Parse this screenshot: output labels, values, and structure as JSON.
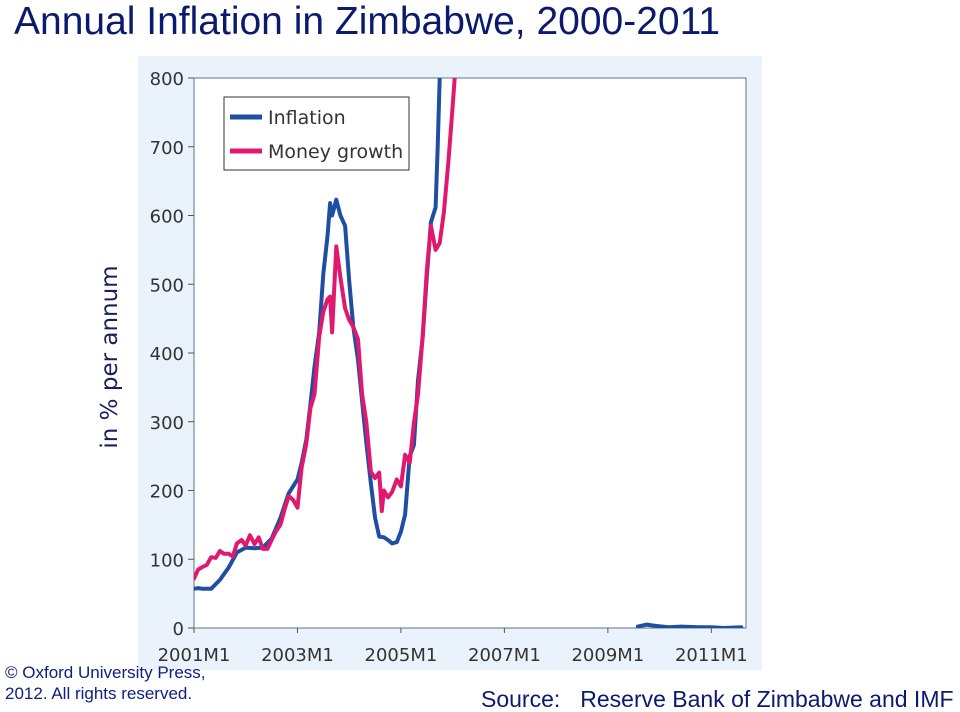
{
  "slide": {
    "title": "Annual Inflation in Zimbabwe, 2000-2011",
    "ylabel": "in % per annum",
    "copyright_line1": "© Oxford University Press,",
    "copyright_line2": "2012. All rights reserved.",
    "source_label": "Source:",
    "source_text": "Reserve Bank of Zimbabwe and IMF"
  },
  "colors": {
    "inflation": "#1f4fa0",
    "money_growth": "#e0196e",
    "panel": "#eaf3fb",
    "title": "#0b1a6e"
  },
  "chart_data": {
    "type": "line",
    "title": "",
    "xlabel": "",
    "ylabel": "",
    "ylim": [
      0,
      800
    ],
    "yticks": [
      0,
      100,
      200,
      300,
      400,
      500,
      600,
      700,
      800
    ],
    "xrange": [
      2001.0,
      2011.67
    ],
    "xticks": [
      {
        "label": "2001M1",
        "x": 2001.0
      },
      {
        "label": "2003M1",
        "x": 2003.0
      },
      {
        "label": "2005M1",
        "x": 2005.0
      },
      {
        "label": "2007M1",
        "x": 2007.0
      },
      {
        "label": "2009M1",
        "x": 2009.0
      },
      {
        "label": "2011M1",
        "x": 2011.0
      }
    ],
    "legend_position": "top-left",
    "grid": false,
    "series": [
      {
        "name": "Inflation",
        "color": "#1f4fa0",
        "segments": [
          [
            [
              2001.0,
              57
            ],
            [
              2001.08,
              58
            ],
            [
              2001.17,
              57
            ],
            [
              2001.33,
              57
            ],
            [
              2001.5,
              70
            ],
            [
              2001.67,
              88
            ],
            [
              2001.83,
              110
            ],
            [
              2002.0,
              117
            ],
            [
              2002.17,
              116
            ],
            [
              2002.33,
              117
            ],
            [
              2002.5,
              130
            ],
            [
              2002.67,
              160
            ],
            [
              2002.83,
              196
            ],
            [
              2003.0,
              216
            ],
            [
              2003.08,
              240
            ],
            [
              2003.17,
              274
            ],
            [
              2003.25,
              325
            ],
            [
              2003.33,
              380
            ],
            [
              2003.42,
              430
            ],
            [
              2003.5,
              515
            ],
            [
              2003.58,
              570
            ],
            [
              2003.63,
              618
            ],
            [
              2003.67,
              600
            ],
            [
              2003.75,
              623
            ],
            [
              2003.83,
              600
            ],
            [
              2003.92,
              585
            ],
            [
              2004.0,
              505
            ],
            [
              2004.08,
              438
            ],
            [
              2004.17,
              390
            ],
            [
              2004.25,
              330
            ],
            [
              2004.33,
              270
            ],
            [
              2004.42,
              210
            ],
            [
              2004.5,
              160
            ],
            [
              2004.58,
              133
            ],
            [
              2004.67,
              132
            ],
            [
              2004.75,
              128
            ],
            [
              2004.83,
              123
            ],
            [
              2004.92,
              125
            ],
            [
              2005.0,
              140
            ],
            [
              2005.08,
              165
            ],
            [
              2005.17,
              250
            ],
            [
              2005.25,
              266
            ],
            [
              2005.33,
              360
            ],
            [
              2005.42,
              423
            ],
            [
              2005.5,
              510
            ],
            [
              2005.58,
              590
            ],
            [
              2005.67,
              612
            ],
            [
              2005.71,
              700
            ],
            [
              2005.75,
              800
            ]
          ],
          [
            [
              2009.58,
              2
            ],
            [
              2009.75,
              5
            ],
            [
              2009.92,
              3
            ],
            [
              2010.17,
              1
            ],
            [
              2010.42,
              2
            ],
            [
              2010.75,
              1
            ],
            [
              2011.0,
              1
            ],
            [
              2011.25,
              0
            ],
            [
              2011.58,
              1
            ]
          ]
        ]
      },
      {
        "name": "Money growth",
        "color": "#e0196e",
        "segments": [
          [
            [
              2001.0,
              72
            ],
            [
              2001.08,
              85
            ],
            [
              2001.17,
              89
            ],
            [
              2001.25,
              92
            ],
            [
              2001.33,
              103
            ],
            [
              2001.42,
              102
            ],
            [
              2001.5,
              112
            ],
            [
              2001.58,
              108
            ],
            [
              2001.67,
              108
            ],
            [
              2001.75,
              104
            ],
            [
              2001.83,
              123
            ],
            [
              2001.92,
              128
            ],
            [
              2002.0,
              120
            ],
            [
              2002.08,
              135
            ],
            [
              2002.17,
              122
            ],
            [
              2002.25,
              132
            ],
            [
              2002.33,
              115
            ],
            [
              2002.42,
              115
            ],
            [
              2002.5,
              128
            ],
            [
              2002.58,
              140
            ],
            [
              2002.67,
              150
            ],
            [
              2002.75,
              172
            ],
            [
              2002.83,
              192
            ],
            [
              2002.92,
              186
            ],
            [
              2003.0,
              175
            ],
            [
              2003.08,
              233
            ],
            [
              2003.17,
              268
            ],
            [
              2003.25,
              320
            ],
            [
              2003.33,
              340
            ],
            [
              2003.42,
              424
            ],
            [
              2003.5,
              460
            ],
            [
              2003.58,
              478
            ],
            [
              2003.63,
              482
            ],
            [
              2003.67,
              430
            ],
            [
              2003.75,
              555
            ],
            [
              2003.83,
              510
            ],
            [
              2003.92,
              465
            ],
            [
              2004.0,
              448
            ],
            [
              2004.08,
              438
            ],
            [
              2004.17,
              420
            ],
            [
              2004.25,
              340
            ],
            [
              2004.33,
              300
            ],
            [
              2004.42,
              227
            ],
            [
              2004.5,
              218
            ],
            [
              2004.58,
              226
            ],
            [
              2004.63,
              170
            ],
            [
              2004.67,
              200
            ],
            [
              2004.75,
              190
            ],
            [
              2004.83,
              198
            ],
            [
              2004.92,
              216
            ],
            [
              2005.0,
              206
            ],
            [
              2005.08,
              252
            ],
            [
              2005.17,
              240
            ],
            [
              2005.25,
              298
            ],
            [
              2005.33,
              340
            ],
            [
              2005.42,
              425
            ],
            [
              2005.5,
              520
            ],
            [
              2005.58,
              585
            ],
            [
              2005.67,
              550
            ],
            [
              2005.75,
              560
            ],
            [
              2005.83,
              605
            ],
            [
              2005.92,
              680
            ],
            [
              2006.0,
              760
            ],
            [
              2006.04,
              800
            ]
          ]
        ]
      }
    ]
  }
}
